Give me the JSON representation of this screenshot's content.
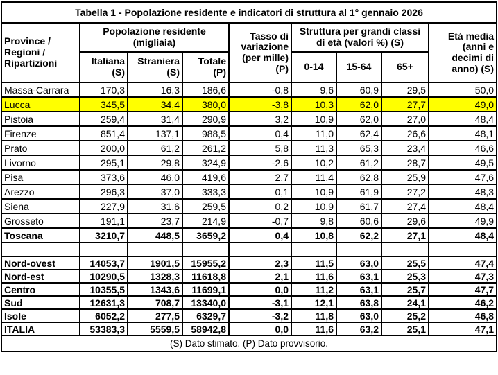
{
  "title": "Tabella 1 - Popolazione residente e indicatori di struttura al 1° gennaio 2026",
  "header": {
    "col_province": "Province /\nRegioni /\nRipartizioni",
    "group_popolazione": "Popolazione residente\n(migliaia)",
    "col_italiana": "Italiana\n(S)",
    "col_straniera": "Straniera\n(S)",
    "col_totale": "Totale\n(P)",
    "col_tasso": "Tasso di\nvariazione\n(per mille)\n(P)",
    "group_struttura": "Struttura per grandi classi\ndi età (valori %) (S)",
    "col_0_14": "0-14",
    "col_15_64": "15-64",
    "col_65plus": "65+",
    "col_eta": "Età media\n(anni e\ndecimi di\nanno) (S)"
  },
  "highlight_color": "#FFFF00",
  "rows": [
    {
      "name": "Massa-Carrara",
      "values": [
        "170,3",
        "16,3",
        "186,6",
        "-0,8",
        "9,6",
        "60,9",
        "29,5",
        "50,0"
      ]
    },
    {
      "name": "Lucca",
      "values": [
        "345,5",
        "34,4",
        "380,0",
        "-3,8",
        "10,3",
        "62,0",
        "27,7",
        "49,0"
      ],
      "highlight": true
    },
    {
      "name": "Pistoia",
      "values": [
        "259,4",
        "31,4",
        "290,9",
        "3,2",
        "10,9",
        "62,0",
        "27,0",
        "48,4"
      ]
    },
    {
      "name": "Firenze",
      "values": [
        "851,4",
        "137,1",
        "988,5",
        "0,4",
        "11,0",
        "62,4",
        "26,6",
        "48,1"
      ]
    },
    {
      "name": "Prato",
      "values": [
        "200,0",
        "61,2",
        "261,2",
        "5,8",
        "11,3",
        "65,3",
        "23,4",
        "46,6"
      ]
    },
    {
      "name": "Livorno",
      "values": [
        "295,1",
        "29,8",
        "324,9",
        "-2,6",
        "10,2",
        "61,2",
        "28,7",
        "49,5"
      ]
    },
    {
      "name": "Pisa",
      "values": [
        "373,6",
        "46,0",
        "419,6",
        "2,7",
        "11,4",
        "62,8",
        "25,9",
        "47,6"
      ]
    },
    {
      "name": "Arezzo",
      "values": [
        "296,3",
        "37,0",
        "333,3",
        "0,1",
        "10,9",
        "61,9",
        "27,2",
        "48,3"
      ]
    },
    {
      "name": "Siena",
      "values": [
        "227,9",
        "31,6",
        "259,5",
        "0,2",
        "10,9",
        "61,7",
        "27,4",
        "48,4"
      ]
    },
    {
      "name": "Grosseto",
      "values": [
        "191,1",
        "23,7",
        "214,9",
        "-0,7",
        "9,8",
        "60,6",
        "29,6",
        "49,9"
      ]
    },
    {
      "name": "Toscana",
      "values": [
        "3210,7",
        "448,5",
        "3659,2",
        "0,4",
        "10,8",
        "62,2",
        "27,1",
        "48,4"
      ],
      "bold": true
    },
    {
      "type": "spacer"
    },
    {
      "name": "Nord-ovest",
      "values": [
        "14053,7",
        "1901,5",
        "15955,2",
        "2,3",
        "11,5",
        "63,0",
        "25,5",
        "47,4"
      ],
      "bold": true,
      "compact": true
    },
    {
      "name": "Nord-est",
      "values": [
        "10290,5",
        "1328,3",
        "11618,8",
        "2,1",
        "11,6",
        "63,1",
        "25,3",
        "47,3"
      ],
      "bold": true,
      "compact": true
    },
    {
      "name": "Centro",
      "values": [
        "10355,5",
        "1343,6",
        "11699,1",
        "0,0",
        "11,2",
        "63,1",
        "25,7",
        "47,7"
      ],
      "bold": true,
      "compact": true
    },
    {
      "name": "Sud",
      "values": [
        "12631,3",
        "708,7",
        "13340,0",
        "-3,1",
        "12,1",
        "63,8",
        "24,1",
        "46,2"
      ],
      "bold": true,
      "compact": true
    },
    {
      "name": "Isole",
      "values": [
        "6052,2",
        "277,5",
        "6329,7",
        "-3,2",
        "11,8",
        "63,0",
        "25,2",
        "46,8"
      ],
      "bold": true,
      "compact": true
    },
    {
      "name": "ITALIA",
      "values": [
        "53383,3",
        "5559,5",
        "58942,8",
        "0,0",
        "11,6",
        "63,2",
        "25,1",
        "47,1"
      ],
      "bold": true,
      "compact": true
    }
  ],
  "footnote": "(S) Dato stimato. (P) Dato provvisorio."
}
